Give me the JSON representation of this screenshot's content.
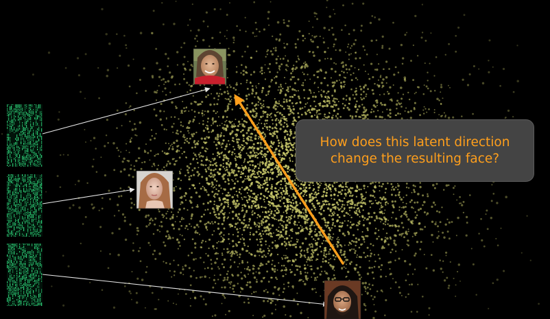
{
  "callout": {
    "line1": "How does this latent direction",
    "line2": "change the resulting face?"
  },
  "colors": {
    "background": "#000000",
    "points": "#c8c86a",
    "direction_arrow": "#ff9f1c",
    "mapping_arrows": "#e8e8e8",
    "latent_code": "#2ed47a",
    "callout_fill": "#444444",
    "callout_text": "#ff9f1c"
  },
  "latent_codes": [
    {
      "id": "latent-code-1",
      "maps_to": "face-1"
    },
    {
      "id": "latent-code-2",
      "maps_to": "face-2"
    },
    {
      "id": "latent-code-3",
      "maps_to": "face-3"
    }
  ],
  "faces": [
    {
      "id": "face-1",
      "icon": "face-portrait-icon"
    },
    {
      "id": "face-2",
      "icon": "face-portrait-icon"
    },
    {
      "id": "face-3",
      "icon": "face-portrait-icon"
    }
  ],
  "direction": {
    "from": "face-3",
    "to": "face-1"
  }
}
